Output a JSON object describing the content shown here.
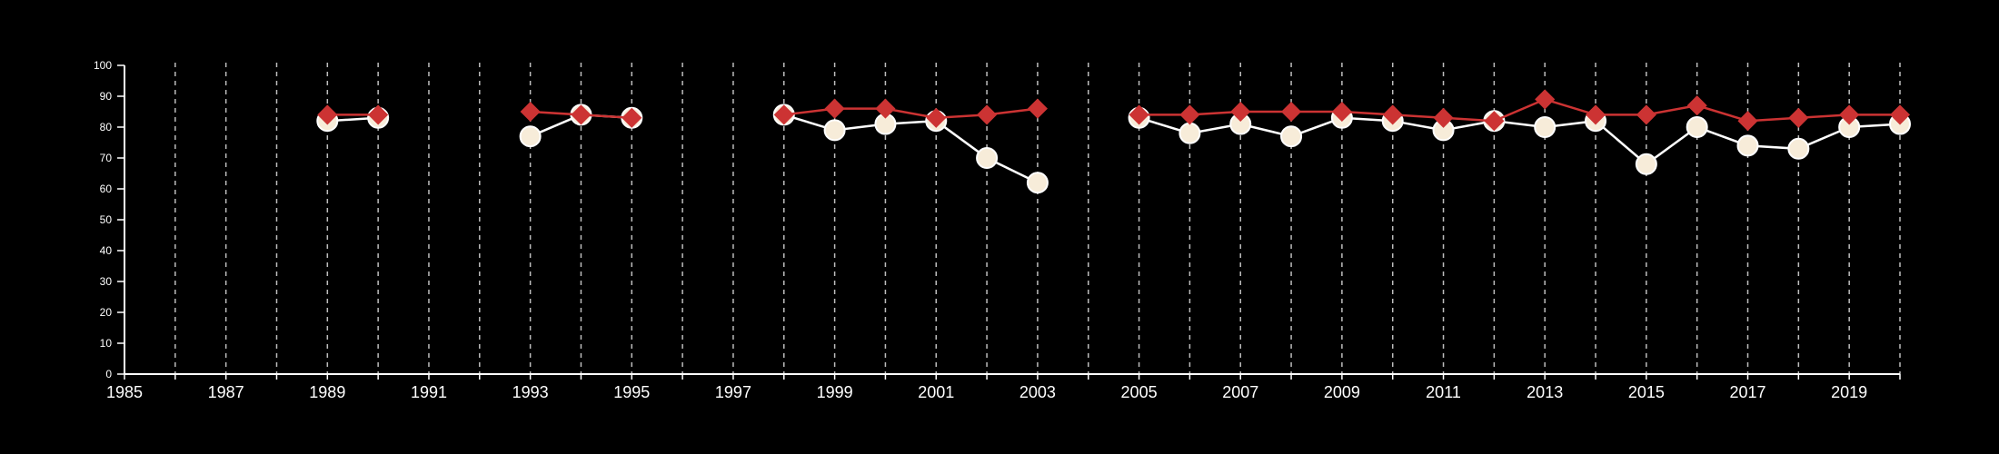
{
  "chart_data": {
    "type": "line",
    "title": "",
    "xlabel": "",
    "ylabel": "",
    "xlim": [
      1985,
      2020
    ],
    "ylim": [
      0,
      100
    ],
    "x_tick_labels": [
      "1985",
      "1987",
      "1989",
      "1991",
      "1993",
      "1995",
      "1997",
      "1999",
      "2001",
      "2003",
      "2005",
      "2007",
      "2009",
      "2011",
      "2013",
      "2015",
      "2017",
      "2019"
    ],
    "y_tick_labels": [
      "0",
      "10",
      "20",
      "30",
      "40",
      "50",
      "60",
      "70",
      "80",
      "90",
      "100"
    ],
    "grid": "vertical-dashed-yearly",
    "legend": "none",
    "colors": {
      "background": "#000000",
      "axis": "#ffffff",
      "grid": "#bdbdbd",
      "series_a_line": "#ffffff",
      "series_a_fill": "#f7ecd9",
      "series_b": "#cc3333"
    },
    "series": [
      {
        "marker": "circle",
        "points": [
          {
            "x": 1989,
            "y": 82
          },
          {
            "x": 1990,
            "y": 83
          },
          {
            "x": 1993,
            "y": 77
          },
          {
            "x": 1994,
            "y": 84
          },
          {
            "x": 1995,
            "y": 83
          },
          {
            "x": 1998,
            "y": 84
          },
          {
            "x": 1999,
            "y": 79
          },
          {
            "x": 2000,
            "y": 81
          },
          {
            "x": 2001,
            "y": 82
          },
          {
            "x": 2002,
            "y": 70
          },
          {
            "x": 2003,
            "y": 62
          },
          {
            "x": 2005,
            "y": 83
          },
          {
            "x": 2006,
            "y": 78
          },
          {
            "x": 2007,
            "y": 81
          },
          {
            "x": 2008,
            "y": 77
          },
          {
            "x": 2009,
            "y": 83
          },
          {
            "x": 2010,
            "y": 82
          },
          {
            "x": 2011,
            "y": 79
          },
          {
            "x": 2012,
            "y": 82
          },
          {
            "x": 2013,
            "y": 80
          },
          {
            "x": 2014,
            "y": 82
          },
          {
            "x": 2015,
            "y": 68
          },
          {
            "x": 2016,
            "y": 80
          },
          {
            "x": 2017,
            "y": 74
          },
          {
            "x": 2018,
            "y": 73
          },
          {
            "x": 2019,
            "y": 80
          },
          {
            "x": 2020,
            "y": 81
          }
        ]
      },
      {
        "marker": "diamond",
        "points": [
          {
            "x": 1989,
            "y": 84
          },
          {
            "x": 1990,
            "y": 84
          },
          {
            "x": 1993,
            "y": 85
          },
          {
            "x": 1994,
            "y": 84
          },
          {
            "x": 1995,
            "y": 83
          },
          {
            "x": 1998,
            "y": 84
          },
          {
            "x": 1999,
            "y": 86
          },
          {
            "x": 2000,
            "y": 86
          },
          {
            "x": 2001,
            "y": 83
          },
          {
            "x": 2002,
            "y": 84
          },
          {
            "x": 2003,
            "y": 86
          },
          {
            "x": 2005,
            "y": 84
          },
          {
            "x": 2006,
            "y": 84
          },
          {
            "x": 2007,
            "y": 85
          },
          {
            "x": 2008,
            "y": 85
          },
          {
            "x": 2009,
            "y": 85
          },
          {
            "x": 2010,
            "y": 84
          },
          {
            "x": 2011,
            "y": 83
          },
          {
            "x": 2012,
            "y": 82
          },
          {
            "x": 2013,
            "y": 89
          },
          {
            "x": 2014,
            "y": 84
          },
          {
            "x": 2015,
            "y": 84
          },
          {
            "x": 2016,
            "y": 87
          },
          {
            "x": 2017,
            "y": 82
          },
          {
            "x": 2018,
            "y": 83
          },
          {
            "x": 2019,
            "y": 84
          },
          {
            "x": 2020,
            "y": 84
          }
        ]
      }
    ]
  }
}
